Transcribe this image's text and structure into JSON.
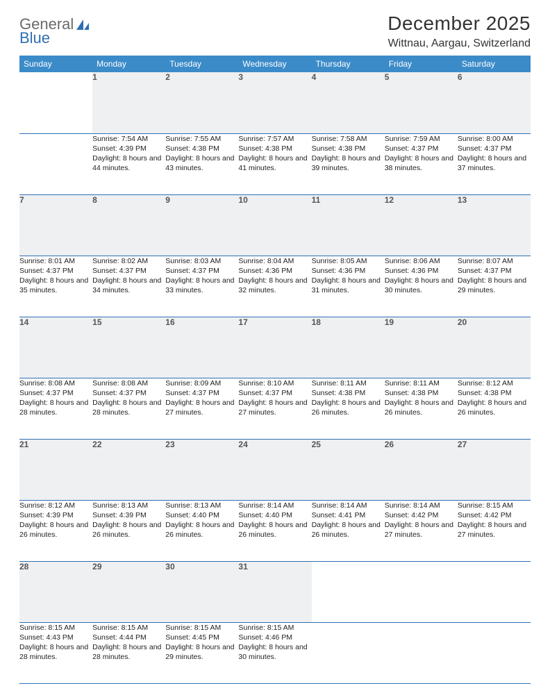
{
  "logo": {
    "text1": "General",
    "text2": "Blue"
  },
  "title": "December 2025",
  "location": "Wittnau, Aargau, Switzerland",
  "colors": {
    "header_bg": "#3b8bc9",
    "header_text": "#ffffff",
    "daynum_bg": "#eef0f2",
    "row_border": "#2f6fb3",
    "logo_accent": "#2f6fb3"
  },
  "weekdays": [
    "Sunday",
    "Monday",
    "Tuesday",
    "Wednesday",
    "Thursday",
    "Friday",
    "Saturday"
  ],
  "weeks": [
    [
      null,
      {
        "n": "1",
        "sr": "7:54 AM",
        "ss": "4:39 PM",
        "dl": "8 hours and 44 minutes."
      },
      {
        "n": "2",
        "sr": "7:55 AM",
        "ss": "4:38 PM",
        "dl": "8 hours and 43 minutes."
      },
      {
        "n": "3",
        "sr": "7:57 AM",
        "ss": "4:38 PM",
        "dl": "8 hours and 41 minutes."
      },
      {
        "n": "4",
        "sr": "7:58 AM",
        "ss": "4:38 PM",
        "dl": "8 hours and 39 minutes."
      },
      {
        "n": "5",
        "sr": "7:59 AM",
        "ss": "4:37 PM",
        "dl": "8 hours and 38 minutes."
      },
      {
        "n": "6",
        "sr": "8:00 AM",
        "ss": "4:37 PM",
        "dl": "8 hours and 37 minutes."
      }
    ],
    [
      {
        "n": "7",
        "sr": "8:01 AM",
        "ss": "4:37 PM",
        "dl": "8 hours and 35 minutes."
      },
      {
        "n": "8",
        "sr": "8:02 AM",
        "ss": "4:37 PM",
        "dl": "8 hours and 34 minutes."
      },
      {
        "n": "9",
        "sr": "8:03 AM",
        "ss": "4:37 PM",
        "dl": "8 hours and 33 minutes."
      },
      {
        "n": "10",
        "sr": "8:04 AM",
        "ss": "4:36 PM",
        "dl": "8 hours and 32 minutes."
      },
      {
        "n": "11",
        "sr": "8:05 AM",
        "ss": "4:36 PM",
        "dl": "8 hours and 31 minutes."
      },
      {
        "n": "12",
        "sr": "8:06 AM",
        "ss": "4:36 PM",
        "dl": "8 hours and 30 minutes."
      },
      {
        "n": "13",
        "sr": "8:07 AM",
        "ss": "4:37 PM",
        "dl": "8 hours and 29 minutes."
      }
    ],
    [
      {
        "n": "14",
        "sr": "8:08 AM",
        "ss": "4:37 PM",
        "dl": "8 hours and 28 minutes."
      },
      {
        "n": "15",
        "sr": "8:08 AM",
        "ss": "4:37 PM",
        "dl": "8 hours and 28 minutes."
      },
      {
        "n": "16",
        "sr": "8:09 AM",
        "ss": "4:37 PM",
        "dl": "8 hours and 27 minutes."
      },
      {
        "n": "17",
        "sr": "8:10 AM",
        "ss": "4:37 PM",
        "dl": "8 hours and 27 minutes."
      },
      {
        "n": "18",
        "sr": "8:11 AM",
        "ss": "4:38 PM",
        "dl": "8 hours and 26 minutes."
      },
      {
        "n": "19",
        "sr": "8:11 AM",
        "ss": "4:38 PM",
        "dl": "8 hours and 26 minutes."
      },
      {
        "n": "20",
        "sr": "8:12 AM",
        "ss": "4:38 PM",
        "dl": "8 hours and 26 minutes."
      }
    ],
    [
      {
        "n": "21",
        "sr": "8:12 AM",
        "ss": "4:39 PM",
        "dl": "8 hours and 26 minutes."
      },
      {
        "n": "22",
        "sr": "8:13 AM",
        "ss": "4:39 PM",
        "dl": "8 hours and 26 minutes."
      },
      {
        "n": "23",
        "sr": "8:13 AM",
        "ss": "4:40 PM",
        "dl": "8 hours and 26 minutes."
      },
      {
        "n": "24",
        "sr": "8:14 AM",
        "ss": "4:40 PM",
        "dl": "8 hours and 26 minutes."
      },
      {
        "n": "25",
        "sr": "8:14 AM",
        "ss": "4:41 PM",
        "dl": "8 hours and 26 minutes."
      },
      {
        "n": "26",
        "sr": "8:14 AM",
        "ss": "4:42 PM",
        "dl": "8 hours and 27 minutes."
      },
      {
        "n": "27",
        "sr": "8:15 AM",
        "ss": "4:42 PM",
        "dl": "8 hours and 27 minutes."
      }
    ],
    [
      {
        "n": "28",
        "sr": "8:15 AM",
        "ss": "4:43 PM",
        "dl": "8 hours and 28 minutes."
      },
      {
        "n": "29",
        "sr": "8:15 AM",
        "ss": "4:44 PM",
        "dl": "8 hours and 28 minutes."
      },
      {
        "n": "30",
        "sr": "8:15 AM",
        "ss": "4:45 PM",
        "dl": "8 hours and 29 minutes."
      },
      {
        "n": "31",
        "sr": "8:15 AM",
        "ss": "4:46 PM",
        "dl": "8 hours and 30 minutes."
      },
      null,
      null,
      null
    ]
  ],
  "labels": {
    "sunrise": "Sunrise:",
    "sunset": "Sunset:",
    "daylight": "Daylight:"
  }
}
